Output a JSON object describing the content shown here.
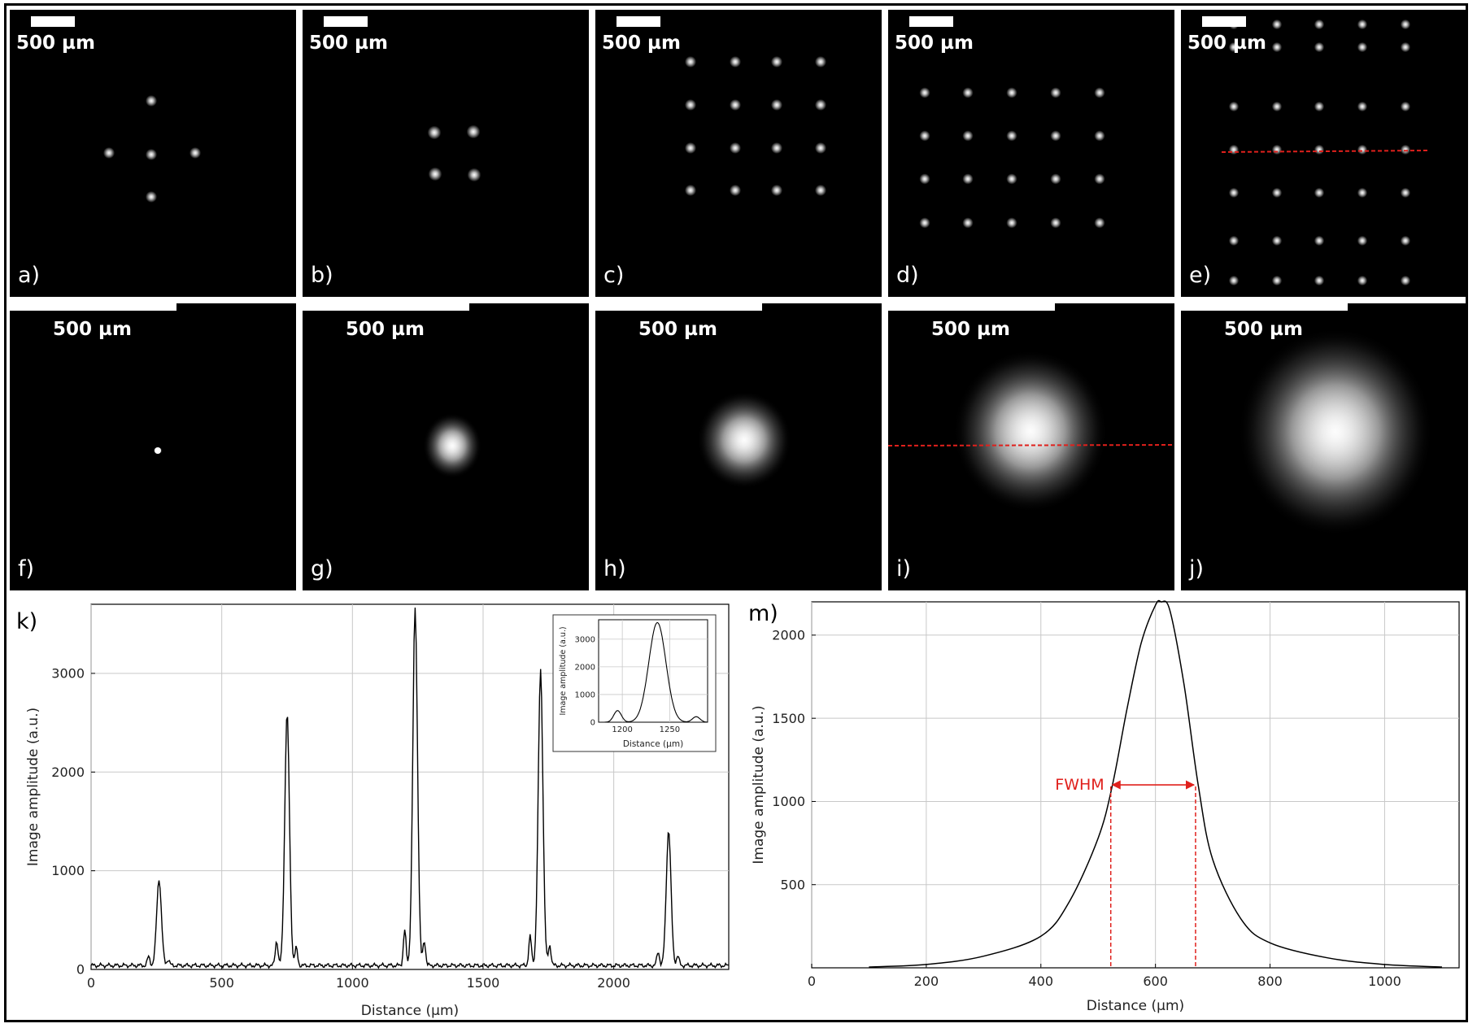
{
  "figure": {
    "panels": [
      {
        "label": "a)",
        "scale": "500 µm",
        "kind": "grid",
        "shown_spots": 5
      },
      {
        "label": "b)",
        "scale": "500 µm",
        "kind": "grid",
        "shown_spots": 4
      },
      {
        "label": "c)",
        "scale": "500 µm",
        "kind": "grid",
        "shown_spots": 16
      },
      {
        "label": "d)",
        "scale": "500 µm",
        "kind": "grid",
        "shown_spots": 20
      },
      {
        "label": "e)",
        "scale": "500 µm",
        "kind": "grid",
        "shown_spots": 35,
        "red_profile_line": true
      },
      {
        "label": "f)",
        "scale": "500 µm",
        "kind": "blob",
        "spot_size": "point"
      },
      {
        "label": "g)",
        "scale": "500 µm",
        "kind": "blob",
        "spot_size": "small"
      },
      {
        "label": "h)",
        "scale": "500 µm",
        "kind": "blob",
        "spot_size": "medium"
      },
      {
        "label": "i)",
        "scale": "500 µm",
        "kind": "blob",
        "spot_size": "large",
        "red_profile_line": true
      },
      {
        "label": "j)",
        "scale": "500 µm",
        "kind": "blob",
        "spot_size": "largest"
      }
    ],
    "colors": {
      "panel_bg": "#000000",
      "spot": "#ffffff",
      "profile_line": "#e0201c",
      "annotation": "#e0201c",
      "grid": "#c8c8c8",
      "trace": "#000000"
    }
  },
  "chart_data": [
    {
      "panel": "k)",
      "type": "line",
      "xlabel": "Distance (µm)",
      "ylabel": "Image amplitude (a.u.)",
      "xlim": [
        0,
        2440
      ],
      "ylim": [
        0,
        3700
      ],
      "xticks": [
        0,
        500,
        1000,
        1500,
        2000
      ],
      "yticks": [
        0,
        1000,
        2000,
        3000
      ],
      "grid": true,
      "peaks": [
        {
          "x": 260,
          "y": 880
        },
        {
          "x": 750,
          "y": 2560
        },
        {
          "x": 1240,
          "y": 3620
        },
        {
          "x": 1720,
          "y": 3000
        },
        {
          "x": 2210,
          "y": 1380
        }
      ],
      "inset": {
        "xlabel": "Distance (µm)",
        "ylabel": "Image amplitude (a.u.)",
        "xlim": [
          1175,
          1290
        ],
        "ylim": [
          0,
          3700
        ],
        "xticks": [
          1200,
          1250
        ],
        "yticks": [
          0,
          1000,
          2000,
          3000
        ],
        "peak": {
          "x": 1237,
          "y": 3600
        }
      }
    },
    {
      "panel": "m)",
      "type": "line",
      "xlabel": "Distance (µm)",
      "ylabel": "Image amplitude (a.u.)",
      "xlim": [
        0,
        1130
      ],
      "ylim": [
        0,
        2200
      ],
      "xticks": [
        0,
        200,
        400,
        600,
        800,
        1000
      ],
      "yticks": [
        500,
        1000,
        1500,
        2000
      ],
      "grid": true,
      "x": [
        100,
        200,
        300,
        400,
        450,
        500,
        525,
        550,
        575,
        600,
        610,
        625,
        650,
        675,
        700,
        750,
        800,
        900,
        1000,
        1100
      ],
      "y": [
        5,
        20,
        70,
        190,
        400,
        780,
        1100,
        1550,
        1950,
        2180,
        2200,
        2150,
        1700,
        1090,
        650,
        290,
        150,
        60,
        20,
        5
      ],
      "fwhm": {
        "label": "FWHM",
        "x_left": 522,
        "x_right": 670,
        "y": 1090
      }
    }
  ]
}
